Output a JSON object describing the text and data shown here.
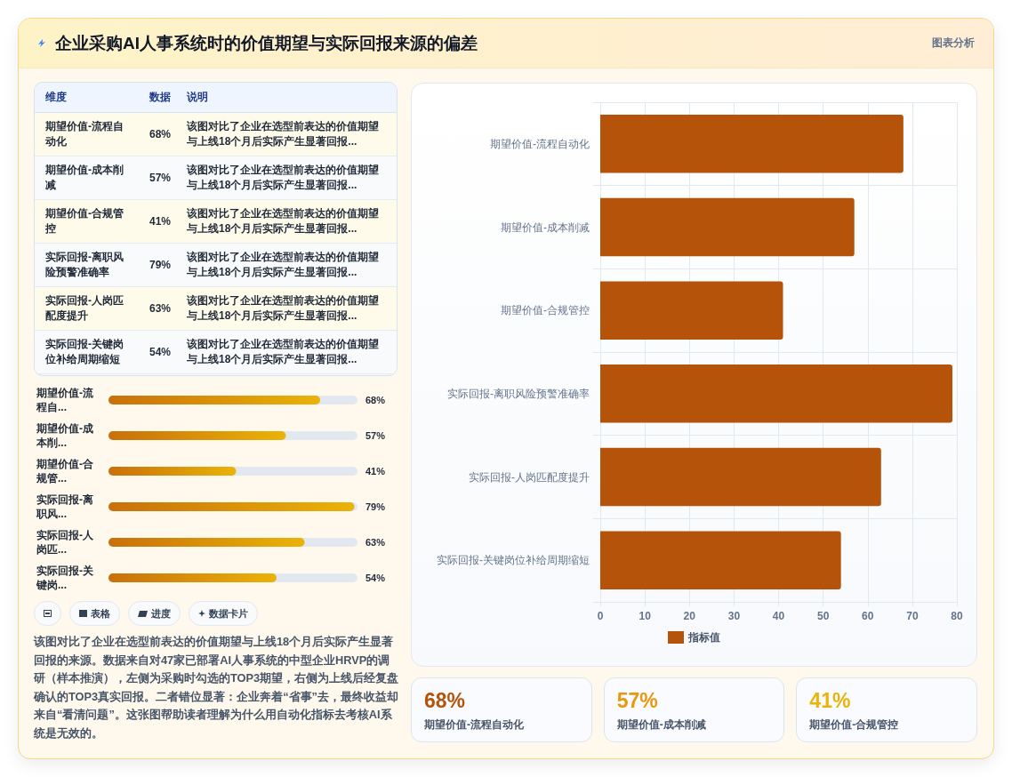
{
  "chart_data": [
    {
      "type": "other",
      "categories": [
        "期望价值-流程自动化",
        "期望价值-成本削减",
        "期望价值-合规管控",
        "实际回报-离职风险预警准确率",
        "实际回报-人岗匹配度提升",
        "实际回报-关键岗位补给周期缩短"
      ],
      "value_labels": [
        "68%",
        "57%",
        "41%",
        "79%",
        "63%",
        "54%"
      ],
      "annotations": [
        "维度",
        "数据",
        "说明",
        "该图对比了企业在选型前表达的价值期望与上线18个月后实际产生显著回报...",
        "该图对比了企业在选型前表达的价值期望与上线18个月后实际产生显著回报...",
        "该图对比了企业在选型前表达的价值期望与上线18个月后实际产生显著回报...",
        "该图对比了企业在选型前表达的价值期望与上线18个月后实际产生显著回报...",
        "该图对比了企业在选型前表达的价值期望与上线18个月后实际产生显著回报...",
        "该图对比了企业在选型前表达的价值期望与上线18个月后实际产生显著回报..."
      ]
    },
    {
      "type": "bar",
      "orientation": "horizontal",
      "categories": [
        "期望价值-流程自...",
        "期望价值-成本削...",
        "期望价值-合规管...",
        "实际回报-离职风...",
        "实际回报-人岗匹...",
        "实际回报-关键岗..."
      ],
      "values": [
        68,
        57,
        41,
        79,
        63,
        54
      ],
      "value_labels": [
        "68%",
        "57%",
        "41%",
        "79%",
        "63%",
        "54%"
      ],
      "color": "#c8700a"
    },
    {
      "type": "other",
      "categories": [
        null,
        "表格",
        "进度",
        "数据卡片"
      ]
    },
    {
      "type": "bar",
      "title": "企业采购AI人事系统时的价值期望与实际回报来源的偏差",
      "orientation": "horizontal",
      "categories": [
        "期望价值-流程自动化",
        "期望价值-成本削减",
        "期望价值-合规管控",
        "实际回报-离职风险预警准确率",
        "实际回报-人岗匹配度提升",
        "实际回报-关键岗位补给周期缩短"
      ],
      "series": [
        {
          "name": "指标值",
          "color": "#b45309",
          "values": [
            68,
            57,
            41,
            79,
            63,
            54
          ]
        }
      ],
      "xlim": [
        0,
        80
      ],
      "xticks": [
        0,
        10,
        20,
        30,
        40,
        50,
        60,
        70,
        80
      ],
      "grid": true,
      "legend": "bottom",
      "annotations": [
        "图表分析",
        "该图对比了企业在选型前表达的价值期望与上线18个月后实际产生显著回报的来源。数据来自对47家已部署AI人事系统的中型企业HRVP的调研（样本推演），左侧为采购时勾选的TOP3期望，右侧为上线后经复盘确认的TOP3真实回报。二者错位显著：企业奔着“省事”去，最终收益却来自“看清问题”。这张图帮助读者理解为什么用自动化指标去考核AI系统是无效的。"
      ]
    },
    {
      "type": "other",
      "categories": [
        "期望价值-流程自动化",
        "期望价值-成本削减",
        "期望价值-合规管控"
      ],
      "value_labels": [
        "68%",
        "57%",
        "41%"
      ]
    }
  ]
}
